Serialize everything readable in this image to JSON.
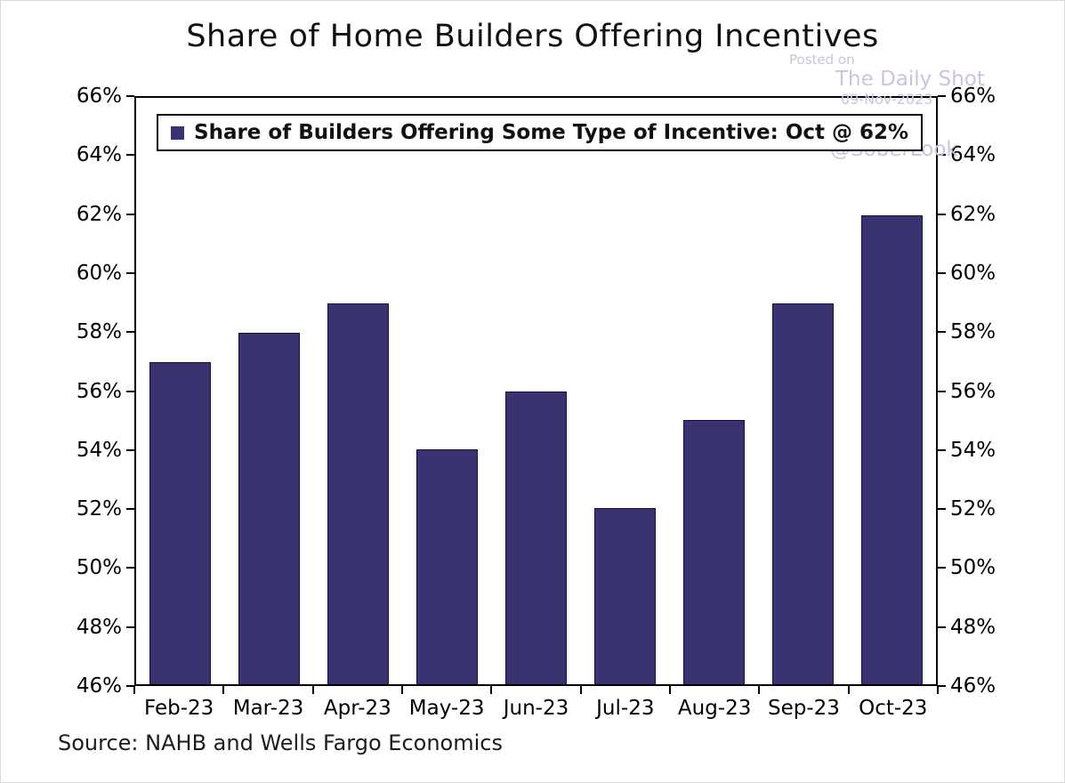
{
  "title": "Share of Home Builders Offering Incentives",
  "legend": {
    "label": "Share of Builders Offering Some Type of Incentive: Oct @ 62%",
    "marker_color": "#3a3372"
  },
  "watermark": {
    "line1": "Posted on",
    "line2": "The Daily Shot",
    "line3": "09-Nov-2023",
    "line4": "@SoberLook",
    "color": "#c7c5df"
  },
  "source": "Source: NAHB and Wells Fargo Economics",
  "chart_data": {
    "type": "bar",
    "categories": [
      "Feb-23",
      "Mar-23",
      "Apr-23",
      "May-23",
      "Jun-23",
      "Jul-23",
      "Aug-23",
      "Sep-23",
      "Oct-23"
    ],
    "values": [
      57,
      58,
      59,
      54,
      56,
      52,
      55,
      59,
      62
    ],
    "title": "Share of Home Builders Offering Incentives",
    "xlabel": "",
    "ylabel": "",
    "ylim": [
      46,
      66
    ],
    "ytick_step": 2,
    "ytick_format": "percent",
    "bar_color": "#3a3372",
    "grid": false,
    "legend_position": "top-left-inside",
    "axes": "dual-y"
  }
}
